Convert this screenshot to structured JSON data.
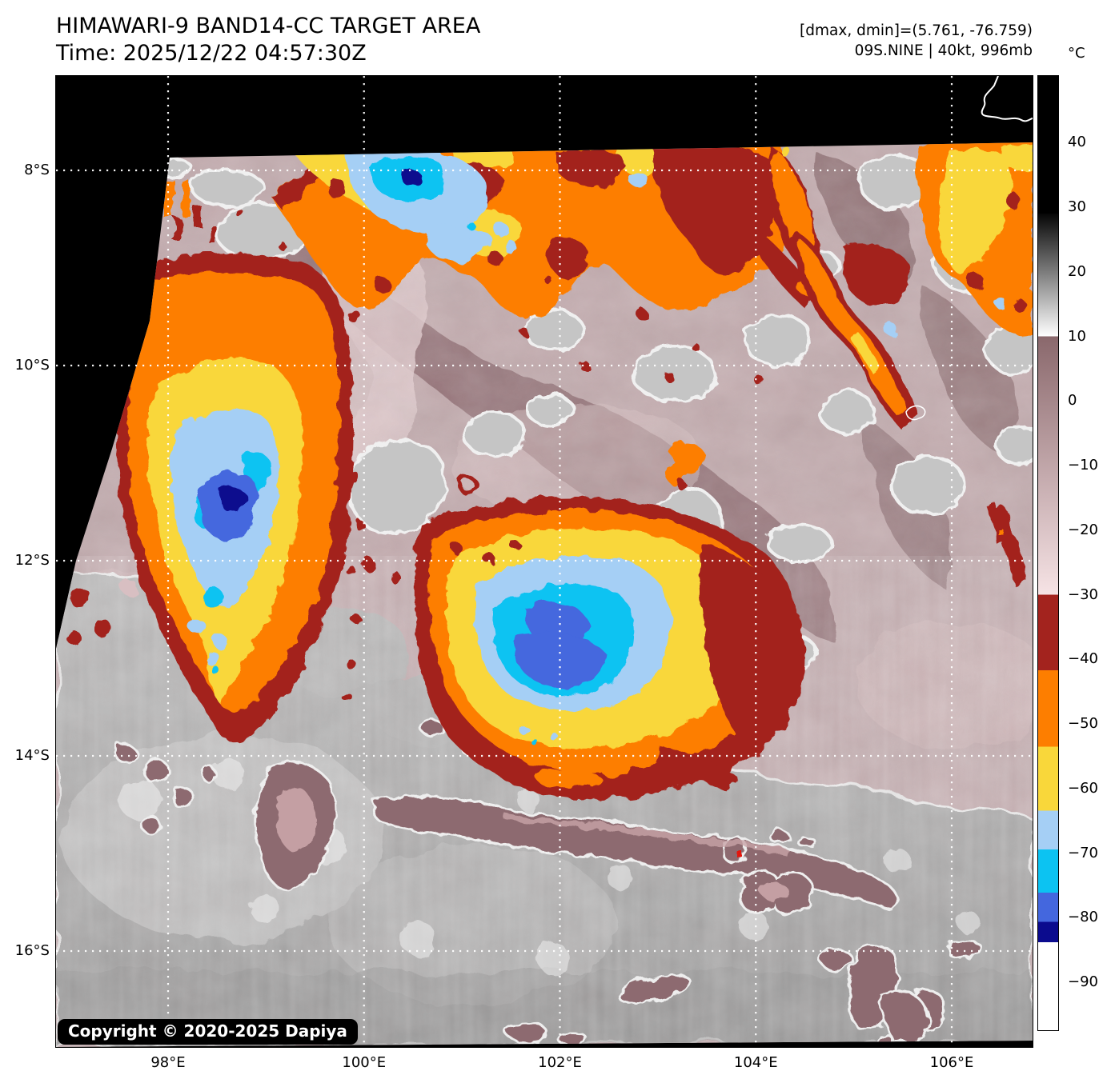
{
  "header": {
    "title_line1": "HIMAWARI-9 BAND14-CC TARGET AREA",
    "title_line2": "Time: 2025/12/22 04:57:30Z",
    "info_line1": "[dmax, dmin]=(5.761, -76.759)",
    "info_line2": "09S.NINE | 40kt, 996mb"
  },
  "map": {
    "copyright": "Copyright © 2020-2025 Dapiya",
    "x_axis": {
      "labels": [
        "98°E",
        "100°E",
        "102°E",
        "104°E",
        "106°E"
      ],
      "lons": [
        98,
        100,
        102,
        104,
        106
      ]
    },
    "y_axis": {
      "labels": [
        "8°S",
        "10°S",
        "12°S",
        "14°S",
        "16°S"
      ],
      "lats": [
        8,
        10,
        12,
        14,
        16
      ]
    }
  },
  "colorbar": {
    "unit": "°C",
    "vmax": 50.3,
    "vmin": -97.4,
    "ticks": [
      {
        "value": 40,
        "label": "40"
      },
      {
        "value": 30,
        "label": "30"
      },
      {
        "value": 20,
        "label": "20"
      },
      {
        "value": 10,
        "label": "10"
      },
      {
        "value": 0,
        "label": "0"
      },
      {
        "value": -10,
        "label": "−10"
      },
      {
        "value": -20,
        "label": "−20"
      },
      {
        "value": -30,
        "label": "−30"
      },
      {
        "value": -40,
        "label": "−40"
      },
      {
        "value": -50,
        "label": "−50"
      },
      {
        "value": -60,
        "label": "−60"
      },
      {
        "value": -70,
        "label": "−70"
      },
      {
        "value": -80,
        "label": "−80"
      },
      {
        "value": -90,
        "label": "−90"
      }
    ],
    "segments": [
      {
        "from": 50.3,
        "to": 29,
        "c1": "#000000",
        "c2": "#000000"
      },
      {
        "from": 29,
        "to": 10,
        "c1": "#060606",
        "c2": "#ffffff"
      },
      {
        "from": 10,
        "to": -30,
        "c1": "#8a686c",
        "c2": "#f6e3e5"
      },
      {
        "from": -30,
        "to": -41.7,
        "c1": "#a3231e",
        "c2": "#a3231e"
      },
      {
        "from": -41.7,
        "to": -53.5,
        "c1": "#fd7e00",
        "c2": "#fd7e00"
      },
      {
        "from": -53.5,
        "to": -63.4,
        "c1": "#f9d73a",
        "c2": "#f9d73a"
      },
      {
        "from": -63.4,
        "to": -69.4,
        "c1": "#a5cff5",
        "c2": "#a5cff5"
      },
      {
        "from": -69.4,
        "to": -76.1,
        "c1": "#0cc3f2",
        "c2": "#0cc3f2"
      },
      {
        "from": -76.1,
        "to": -80.6,
        "c1": "#4467de",
        "c2": "#4467de"
      },
      {
        "from": -80.6,
        "to": -83.8,
        "c1": "#0b0b8e",
        "c2": "#0b0b8e"
      },
      {
        "from": -83.8,
        "to": -97.4,
        "c1": "#ffffff",
        "c2": "#ffffff"
      }
    ]
  },
  "palette": {
    "background": "#ffffff",
    "space_black": "#000000",
    "grid_white": "#ffffff",
    "warm_mauve": "#9b7b7f",
    "pale_pink": "#e2cbce",
    "gray_cloud": "#c5c5c5",
    "dark_red": "#a3231e",
    "orange": "#fd7e00",
    "yellow": "#f9d73a",
    "pale_blue": "#a5cff5",
    "cyan": "#0cc3f2",
    "royal_blue": "#4467de",
    "navy": "#0b0b8e"
  }
}
